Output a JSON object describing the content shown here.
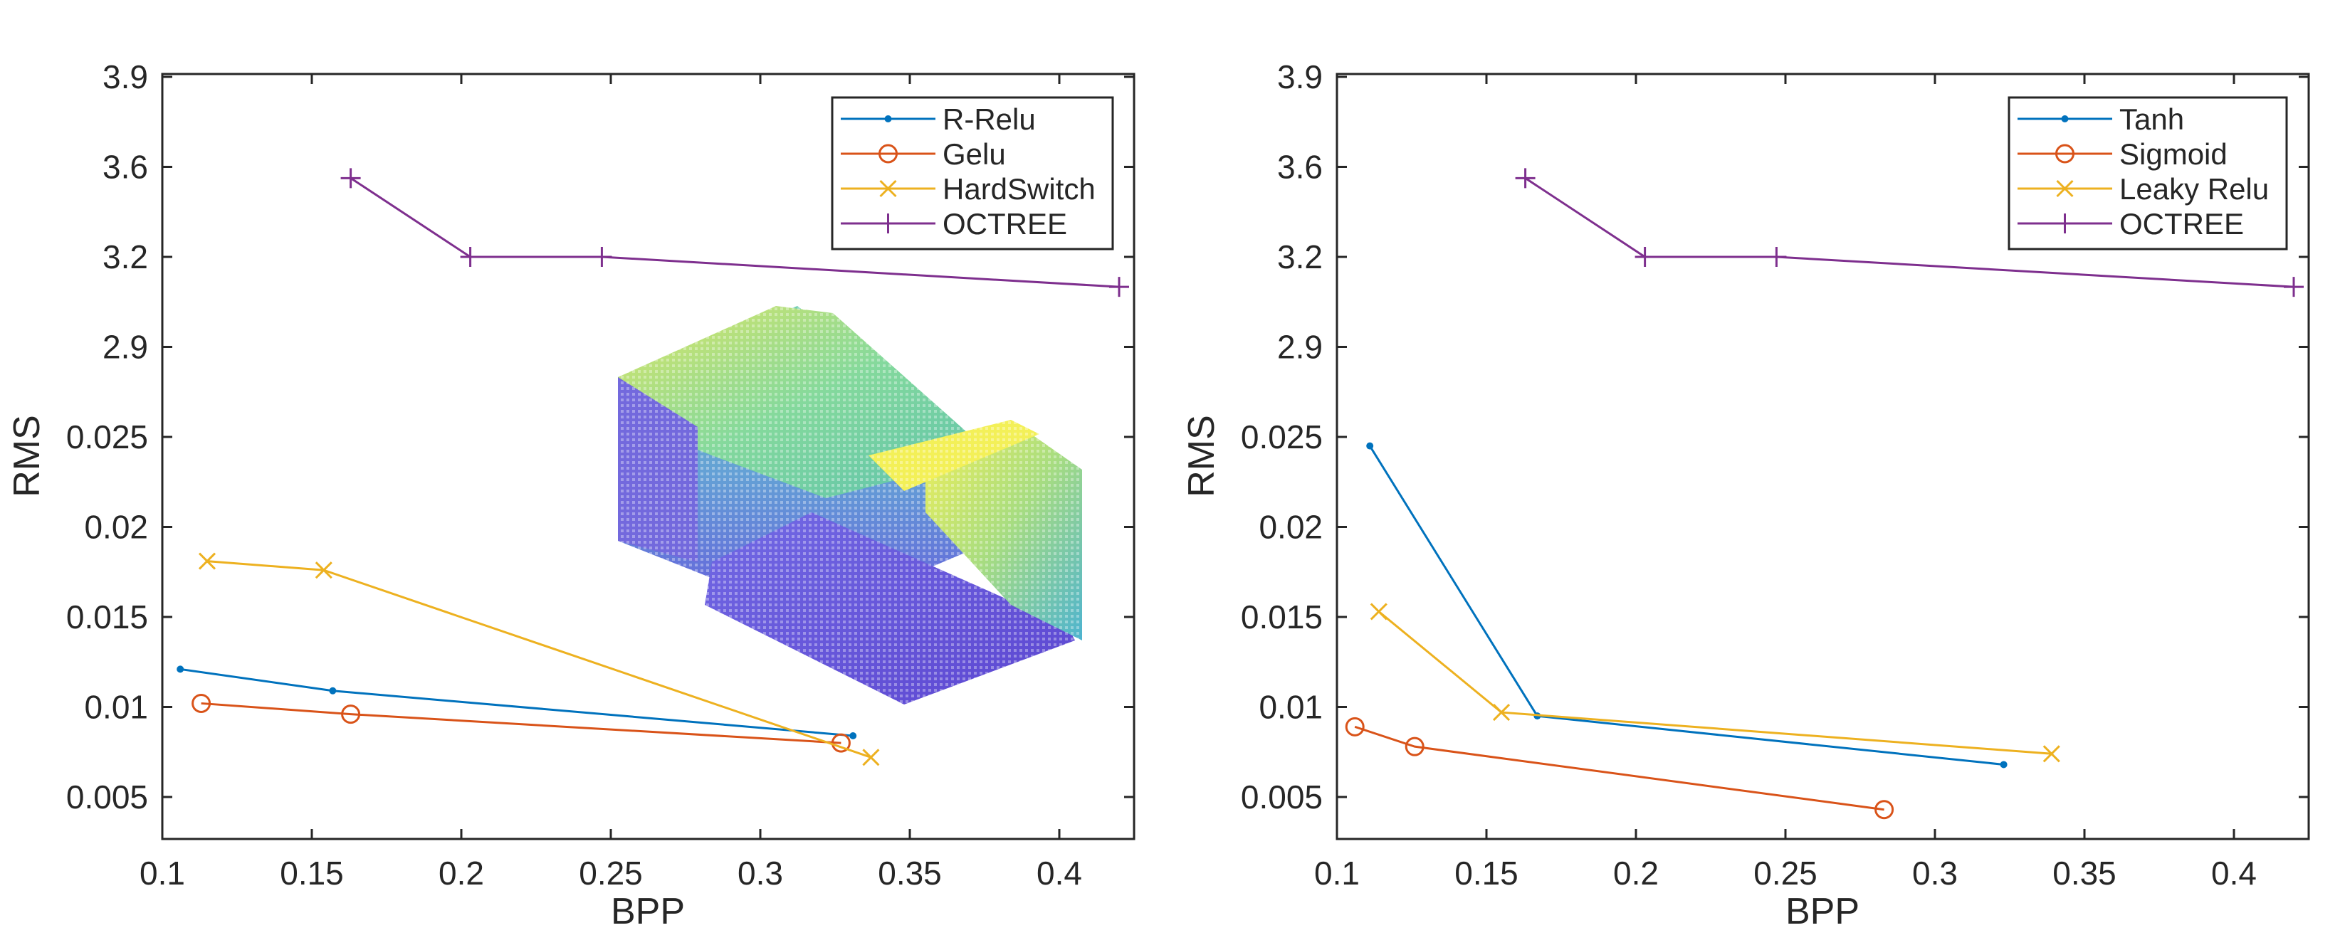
{
  "chart_data": [
    {
      "type": "line",
      "title": "",
      "xlabel": "BPP",
      "ylabel": "RMS",
      "xlim": [
        0.1,
        0.425
      ],
      "x_ticks": [
        "0.1",
        "0.15",
        "0.2",
        "0.25",
        "0.3",
        "0.35",
        "0.4"
      ],
      "x_tick_values": [
        0.1,
        0.15,
        0.2,
        0.25,
        0.3,
        0.35,
        0.4
      ],
      "y_ticks": [
        "0.005",
        "0.01",
        "0.015",
        "0.02",
        "0.025",
        "2.9",
        "3.2",
        "3.6",
        "3.9"
      ],
      "y_axis_note": "broken axis: ticks are evenly spaced categories",
      "legend_position": "top-right",
      "inset_image": "point-cloud-sofa",
      "series": [
        {
          "name": "R-Relu",
          "marker": "dot",
          "color": "#0072BD",
          "x": [
            0.106,
            0.157,
            0.331
          ],
          "y": [
            0.0121,
            0.0109,
            0.0084
          ]
        },
        {
          "name": "Gelu",
          "marker": "circle",
          "color": "#D95319",
          "x": [
            0.113,
            0.163,
            0.327
          ],
          "y": [
            0.0102,
            0.0096,
            0.008
          ]
        },
        {
          "name": "HardSwitch",
          "marker": "x",
          "color": "#EDB120",
          "x": [
            0.115,
            0.154,
            0.337
          ],
          "y": [
            0.0181,
            0.0176,
            0.0072
          ]
        },
        {
          "name": "OCTREE",
          "marker": "plus",
          "color": "#7E2F8E",
          "x": [
            0.163,
            0.203,
            0.247,
            0.42
          ],
          "y": [
            3.55,
            3.2,
            3.2,
            3.1
          ]
        }
      ]
    },
    {
      "type": "line",
      "title": "",
      "xlabel": "BPP",
      "ylabel": "RMS",
      "xlim": [
        0.1,
        0.425
      ],
      "x_ticks": [
        "0.1",
        "0.15",
        "0.2",
        "0.25",
        "0.3",
        "0.35",
        "0.4"
      ],
      "x_tick_values": [
        0.1,
        0.15,
        0.2,
        0.25,
        0.3,
        0.35,
        0.4
      ],
      "y_ticks": [
        "0.005",
        "0.01",
        "0.015",
        "0.02",
        "0.025",
        "2.9",
        "3.2",
        "3.6",
        "3.9"
      ],
      "y_axis_note": "broken axis: ticks are evenly spaced categories",
      "legend_position": "top-right",
      "series": [
        {
          "name": "Tanh",
          "marker": "dot",
          "color": "#0072BD",
          "x": [
            0.111,
            0.167,
            0.323
          ],
          "y": [
            0.0245,
            0.0095,
            0.0068
          ]
        },
        {
          "name": "Sigmoid",
          "marker": "circle",
          "color": "#D95319",
          "x": [
            0.106,
            0.126,
            0.283
          ],
          "y": [
            0.0089,
            0.0078,
            0.0043
          ]
        },
        {
          "name": "Leaky Relu",
          "marker": "x",
          "color": "#EDB120",
          "x": [
            0.114,
            0.155,
            0.339
          ],
          "y": [
            0.0153,
            0.0097,
            0.0074
          ]
        },
        {
          "name": "OCTREE",
          "marker": "plus",
          "color": "#7E2F8E",
          "x": [
            0.163,
            0.203,
            0.247,
            0.42
          ],
          "y": [
            3.55,
            3.2,
            3.2,
            3.1
          ]
        }
      ]
    }
  ]
}
